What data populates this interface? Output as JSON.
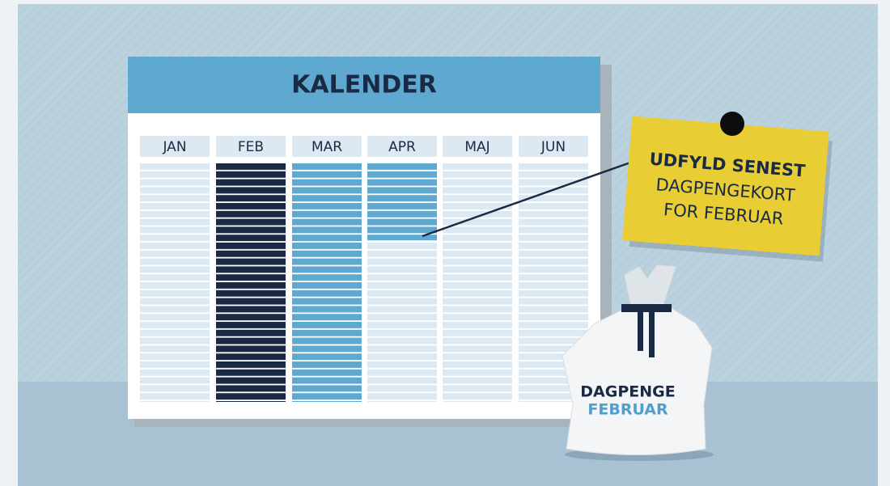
{
  "calendar": {
    "title": "KALENDER",
    "months": [
      "JAN",
      "FEB",
      "MAR",
      "APR",
      "MAJ",
      "JUN"
    ]
  },
  "note": {
    "lines": [
      "UDFYLD SENEST",
      "DAGPENGEKORT",
      "FOR FEBRUAR"
    ]
  },
  "bag": {
    "lines": [
      "DAGPENGE",
      "FEBRUAR"
    ]
  }
}
